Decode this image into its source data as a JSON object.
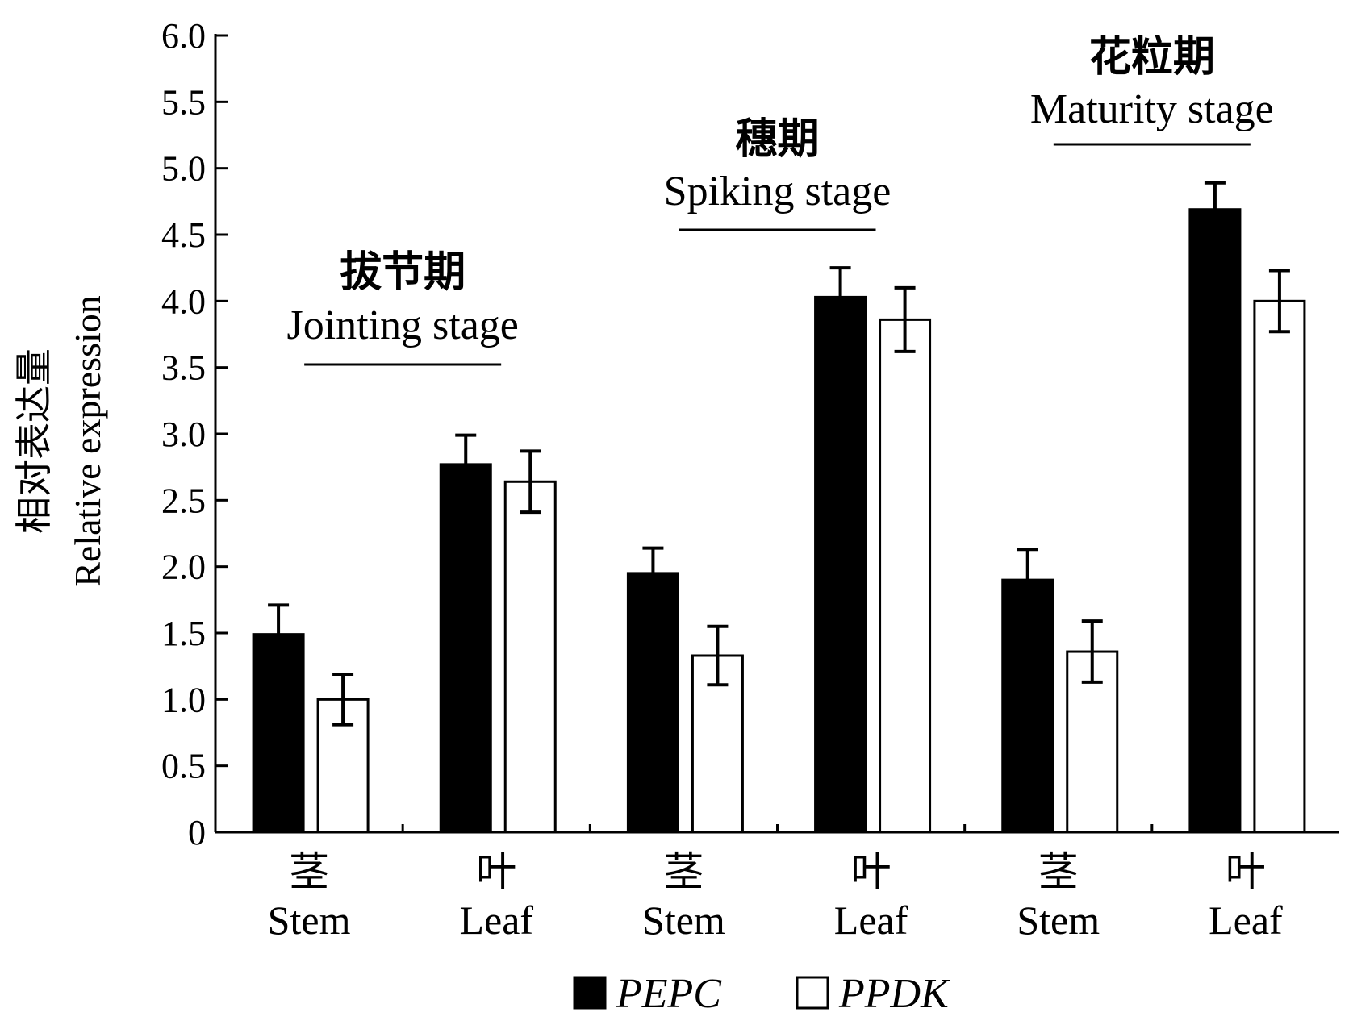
{
  "chart_data": {
    "type": "bar",
    "ylabel_cn": "相对表达量",
    "ylabel_en": "Relative expression",
    "ylim": [
      0,
      6.0
    ],
    "yticks": [
      "0",
      "0.5",
      "1.0",
      "1.5",
      "2.0",
      "2.5",
      "3.0",
      "3.5",
      "4.0",
      "4.5",
      "5.0",
      "5.5",
      "6.0"
    ],
    "categories": [
      {
        "cn": "茎",
        "en": "Stem"
      },
      {
        "cn": "叶",
        "en": "Leaf"
      },
      {
        "cn": "茎",
        "en": "Stem"
      },
      {
        "cn": "叶",
        "en": "Leaf"
      },
      {
        "cn": "茎",
        "en": "Stem"
      },
      {
        "cn": "叶",
        "en": "Leaf"
      }
    ],
    "stages": [
      {
        "cn": "拔节期",
        "en": "Jointing stage",
        "categories": [
          0,
          1
        ]
      },
      {
        "cn": "穗期",
        "en": "Spiking stage",
        "categories": [
          2,
          3
        ]
      },
      {
        "cn": "花粒期",
        "en": "Maturity stage",
        "categories": [
          4,
          5
        ]
      }
    ],
    "series": [
      {
        "name": "PEPC",
        "color": "#000000",
        "values": [
          1.49,
          2.77,
          1.95,
          4.03,
          1.9,
          4.69
        ],
        "errors": [
          0.22,
          0.22,
          0.19,
          0.22,
          0.23,
          0.2
        ]
      },
      {
        "name": "PPDK",
        "color": "#ffffff",
        "values": [
          1.0,
          2.64,
          1.33,
          3.86,
          1.36,
          4.0
        ],
        "errors": [
          0.19,
          0.23,
          0.22,
          0.24,
          0.23,
          0.23
        ]
      }
    ],
    "legend": {
      "position": "bottom"
    },
    "grid": false
  }
}
